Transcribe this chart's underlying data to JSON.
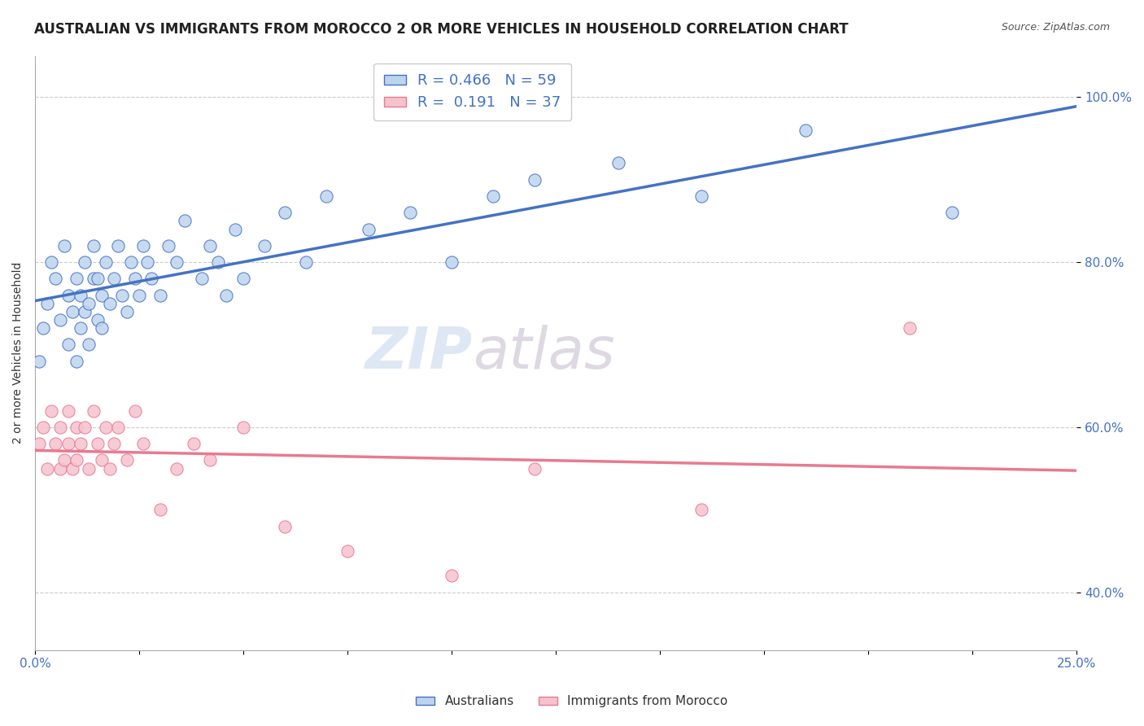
{
  "title": "AUSTRALIAN VS IMMIGRANTS FROM MOROCCO 2 OR MORE VEHICLES IN HOUSEHOLD CORRELATION CHART",
  "source": "Source: ZipAtlas.com",
  "ylabel": "2 or more Vehicles in Household",
  "legend_label1": "Australians",
  "legend_label2": "Immigrants from Morocco",
  "r1": 0.466,
  "n1": 59,
  "r2": 0.191,
  "n2": 37,
  "watermark_left": "ZIP",
  "watermark_right": "atlas",
  "blue_fill": "#BDD4EE",
  "pink_fill": "#F5C2CE",
  "blue_edge": "#4472C4",
  "pink_edge": "#E87A90",
  "blue_line_color": "#4472C4",
  "pink_line_color": "#E87A90",
  "tick_color": "#4472C4",
  "australians_x": [
    0.001,
    0.002,
    0.003,
    0.004,
    0.005,
    0.006,
    0.007,
    0.008,
    0.008,
    0.009,
    0.01,
    0.01,
    0.011,
    0.011,
    0.012,
    0.012,
    0.013,
    0.013,
    0.014,
    0.014,
    0.015,
    0.015,
    0.016,
    0.016,
    0.017,
    0.018,
    0.019,
    0.02,
    0.021,
    0.022,
    0.023,
    0.024,
    0.025,
    0.026,
    0.027,
    0.028,
    0.03,
    0.032,
    0.034,
    0.036,
    0.04,
    0.042,
    0.044,
    0.046,
    0.048,
    0.05,
    0.055,
    0.06,
    0.065,
    0.07,
    0.08,
    0.09,
    0.1,
    0.11,
    0.12,
    0.14,
    0.16,
    0.185,
    0.22
  ],
  "australians_y": [
    0.68,
    0.72,
    0.75,
    0.8,
    0.78,
    0.73,
    0.82,
    0.76,
    0.7,
    0.74,
    0.78,
    0.68,
    0.72,
    0.76,
    0.74,
    0.8,
    0.7,
    0.75,
    0.78,
    0.82,
    0.73,
    0.78,
    0.76,
    0.72,
    0.8,
    0.75,
    0.78,
    0.82,
    0.76,
    0.74,
    0.8,
    0.78,
    0.76,
    0.82,
    0.8,
    0.78,
    0.76,
    0.82,
    0.8,
    0.85,
    0.78,
    0.82,
    0.8,
    0.76,
    0.84,
    0.78,
    0.82,
    0.86,
    0.8,
    0.88,
    0.84,
    0.86,
    0.8,
    0.88,
    0.9,
    0.92,
    0.88,
    0.96,
    0.86
  ],
  "morocco_x": [
    0.001,
    0.002,
    0.003,
    0.004,
    0.005,
    0.006,
    0.006,
    0.007,
    0.008,
    0.008,
    0.009,
    0.01,
    0.01,
    0.011,
    0.012,
    0.013,
    0.014,
    0.015,
    0.016,
    0.017,
    0.018,
    0.019,
    0.02,
    0.022,
    0.024,
    0.026,
    0.03,
    0.034,
    0.038,
    0.042,
    0.05,
    0.06,
    0.075,
    0.1,
    0.12,
    0.16,
    0.21
  ],
  "morocco_y": [
    0.58,
    0.6,
    0.55,
    0.62,
    0.58,
    0.55,
    0.6,
    0.56,
    0.62,
    0.58,
    0.55,
    0.6,
    0.56,
    0.58,
    0.6,
    0.55,
    0.62,
    0.58,
    0.56,
    0.6,
    0.55,
    0.58,
    0.6,
    0.56,
    0.62,
    0.58,
    0.5,
    0.55,
    0.58,
    0.56,
    0.6,
    0.48,
    0.45,
    0.42,
    0.55,
    0.5,
    0.72
  ],
  "xmin": 0.0,
  "xmax": 0.25,
  "ymin": 0.33,
  "ymax": 1.05,
  "yticks": [
    0.4,
    0.6,
    0.8,
    1.0
  ],
  "ytick_labels": [
    "40.0%",
    "60.0%",
    "80.0%",
    "100.0%"
  ],
  "background_color": "#FFFFFF",
  "grid_color": "#CCCCCC",
  "title_fontsize": 12,
  "source_fontsize": 9,
  "axis_label_fontsize": 10,
  "tick_fontsize": 11,
  "legend_fontsize": 13
}
